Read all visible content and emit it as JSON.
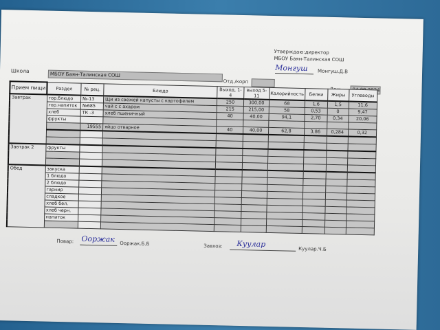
{
  "header": {
    "approve_line1": "Утверждаю:директор",
    "approve_line2": "МБОУ Баян-Талинская СОШ",
    "director_signature": "Монгуш",
    "director_name": "Монгуш.Д.В",
    "school_label": "Школа",
    "school_value": "МБОУ Баян-Талинская СОШ",
    "dept_label": "Отд./корп",
    "dept_value": "",
    "day_label": "День",
    "day_value": "04.09.2024"
  },
  "table": {
    "columns": [
      "Прием пищи",
      "Раздел",
      "№ рец.",
      "Блюдо",
      "Выход, 1-4",
      "выход 5-11",
      "Калорийность",
      "Белки",
      "Жиры",
      "Углеводы"
    ],
    "meals": [
      {
        "meal": "Завтрак",
        "rows": [
          {
            "section": "гор.блюдо",
            "recipe": "№-13",
            "dish": "Щи из свежей капусты с картофелем",
            "out14": "250",
            "out511": "300,00",
            "kcal": "68",
            "protein": "1,6",
            "fat": "1,5",
            "carbs": "11,6"
          },
          {
            "section": "гор.напиток",
            "recipe": "№685",
            "dish": "чай с с ахаром",
            "out14": "215",
            "out511": "215,00",
            "kcal": "58",
            "protein": "0,53",
            "fat": "0",
            "carbs": "9,47"
          },
          {
            "section": "хлеб",
            "recipe": "ТК -3",
            "dish": "хлеб пшеничный",
            "out14": "40",
            "out511": "40,00",
            "kcal": "94,1",
            "protein": "2,70",
            "fat": "0,34",
            "carbs": "20,06"
          },
          {
            "section": "фрукты",
            "recipe": "",
            "dish": "",
            "out14": "",
            "out511": "",
            "kcal": "",
            "protein": "",
            "fat": "",
            "carbs": ""
          },
          {
            "section": "",
            "recipe": "19555",
            "dish": "яйцо отварное",
            "out14": "40",
            "out511": "40,00",
            "kcal": "62,8",
            "protein": "3,86",
            "fat": "0,284",
            "carbs": "0,32"
          },
          {
            "section": "",
            "recipe": "",
            "dish": "",
            "out14": "",
            "out511": "",
            "kcal": "",
            "protein": "",
            "fat": "",
            "carbs": ""
          },
          {
            "section": "",
            "recipe": "",
            "dish": "",
            "out14": "",
            "out511": "",
            "kcal": "",
            "protein": "",
            "fat": "",
            "carbs": ""
          }
        ]
      },
      {
        "meal": "Завтрак 2",
        "rows": [
          {
            "section": "фрукты"
          },
          {
            "section": ""
          },
          {
            "section": ""
          }
        ]
      },
      {
        "meal": "Обед",
        "rows": [
          {
            "section": "закуска"
          },
          {
            "section": "1 блюдо"
          },
          {
            "section": "2 блюдо"
          },
          {
            "section": "гарнир"
          },
          {
            "section": "сладкое"
          },
          {
            "section": "хлеб бел."
          },
          {
            "section": "хлеб черн."
          },
          {
            "section": "напиток"
          },
          {
            "section": ""
          }
        ]
      }
    ]
  },
  "footer": {
    "cook_label": "Повар:",
    "cook_signature": "Ооржак",
    "cook_name": "Ооржак.Б.Б",
    "storekeeper_label": "Завхоз:",
    "storekeeper_signature": "Куулар",
    "storekeeper_name": "Куулар.Ч.Б"
  }
}
